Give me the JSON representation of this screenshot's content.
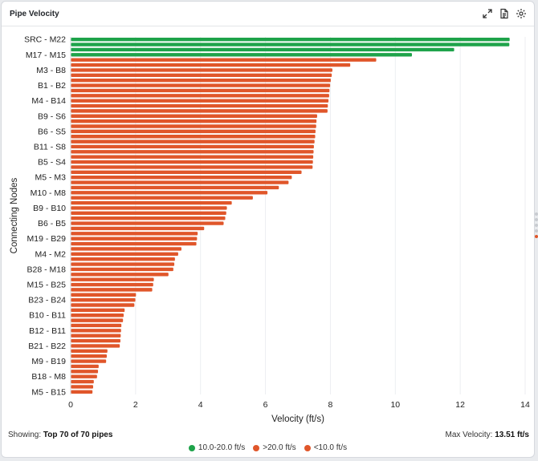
{
  "header": {
    "title": "Pipe Velocity",
    "icons": [
      "expand-icon",
      "document-icon",
      "gear-icon"
    ]
  },
  "footer": {
    "showing_label": "Showing:",
    "showing_value": "Top 70 of 70 pipes",
    "max_label": "Max Velocity:",
    "max_value": "13.51 ft/s"
  },
  "legend": [
    {
      "label": "10.0-20.0 ft/s",
      "color": "#1ea34a"
    },
    {
      "label": ">20.0 ft/s",
      "color": "#e0562a"
    },
    {
      "label": "<10.0 ft/s",
      "color": "#e0562a"
    }
  ],
  "chart_data": {
    "type": "bar",
    "orientation": "horizontal",
    "xlabel": "Velocity (ft/s)",
    "ylabel": "Connecting Nodes",
    "xlim": [
      0,
      14
    ],
    "xticks": [
      0,
      2,
      4,
      6,
      8,
      10,
      12,
      14
    ],
    "grid": true,
    "categories": [
      "SRC - M22",
      "",
      "",
      "M17 - M15",
      "",
      "",
      "M3 - B8",
      "",
      "",
      "B1 - B2",
      "",
      "",
      "M4 - B14",
      "",
      "",
      "B9 - S6",
      "",
      "",
      "B6 - S5",
      "",
      "",
      "B11 - S8",
      "",
      "",
      "B5 - S4",
      "",
      "",
      "M5 - M3",
      "",
      "",
      "M10 - M8",
      "",
      "",
      "B9 - B10",
      "",
      "",
      "B6 - B5",
      "",
      "",
      "M19 - B29",
      "",
      "",
      "M4 - M2",
      "",
      "",
      "B28 - M18",
      "",
      "",
      "M15 - B25",
      "",
      "",
      "B23 - B24",
      "",
      "",
      "B10 - B11",
      "",
      "",
      "B12 - B11",
      "",
      "",
      "B21 - B22",
      "",
      "",
      "M9 - B19",
      "",
      "",
      "B18 - M8",
      "",
      "",
      "M5 - B15"
    ],
    "values": [
      13.51,
      13.5,
      11.8,
      10.5,
      9.4,
      8.6,
      8.05,
      8.03,
      8.0,
      7.98,
      7.96,
      7.95,
      7.93,
      7.91,
      7.9,
      7.58,
      7.56,
      7.55,
      7.53,
      7.52,
      7.5,
      7.48,
      7.47,
      7.46,
      7.45,
      7.44,
      7.1,
      6.8,
      6.7,
      6.4,
      6.05,
      5.6,
      4.95,
      4.8,
      4.78,
      4.75,
      4.7,
      4.1,
      3.9,
      3.88,
      3.86,
      3.4,
      3.3,
      3.2,
      3.18,
      3.15,
      3.0,
      2.55,
      2.53,
      2.5,
      2.0,
      1.98,
      1.95,
      1.65,
      1.62,
      1.6,
      1.55,
      1.54,
      1.53,
      1.52,
      1.5,
      1.12,
      1.1,
      1.08,
      0.85,
      0.83,
      0.8,
      0.7,
      0.68,
      0.66
    ],
    "bar_colors_by_category": {
      "high": "#1ea34a",
      "other": "#e0562a"
    },
    "green_count": 4
  }
}
